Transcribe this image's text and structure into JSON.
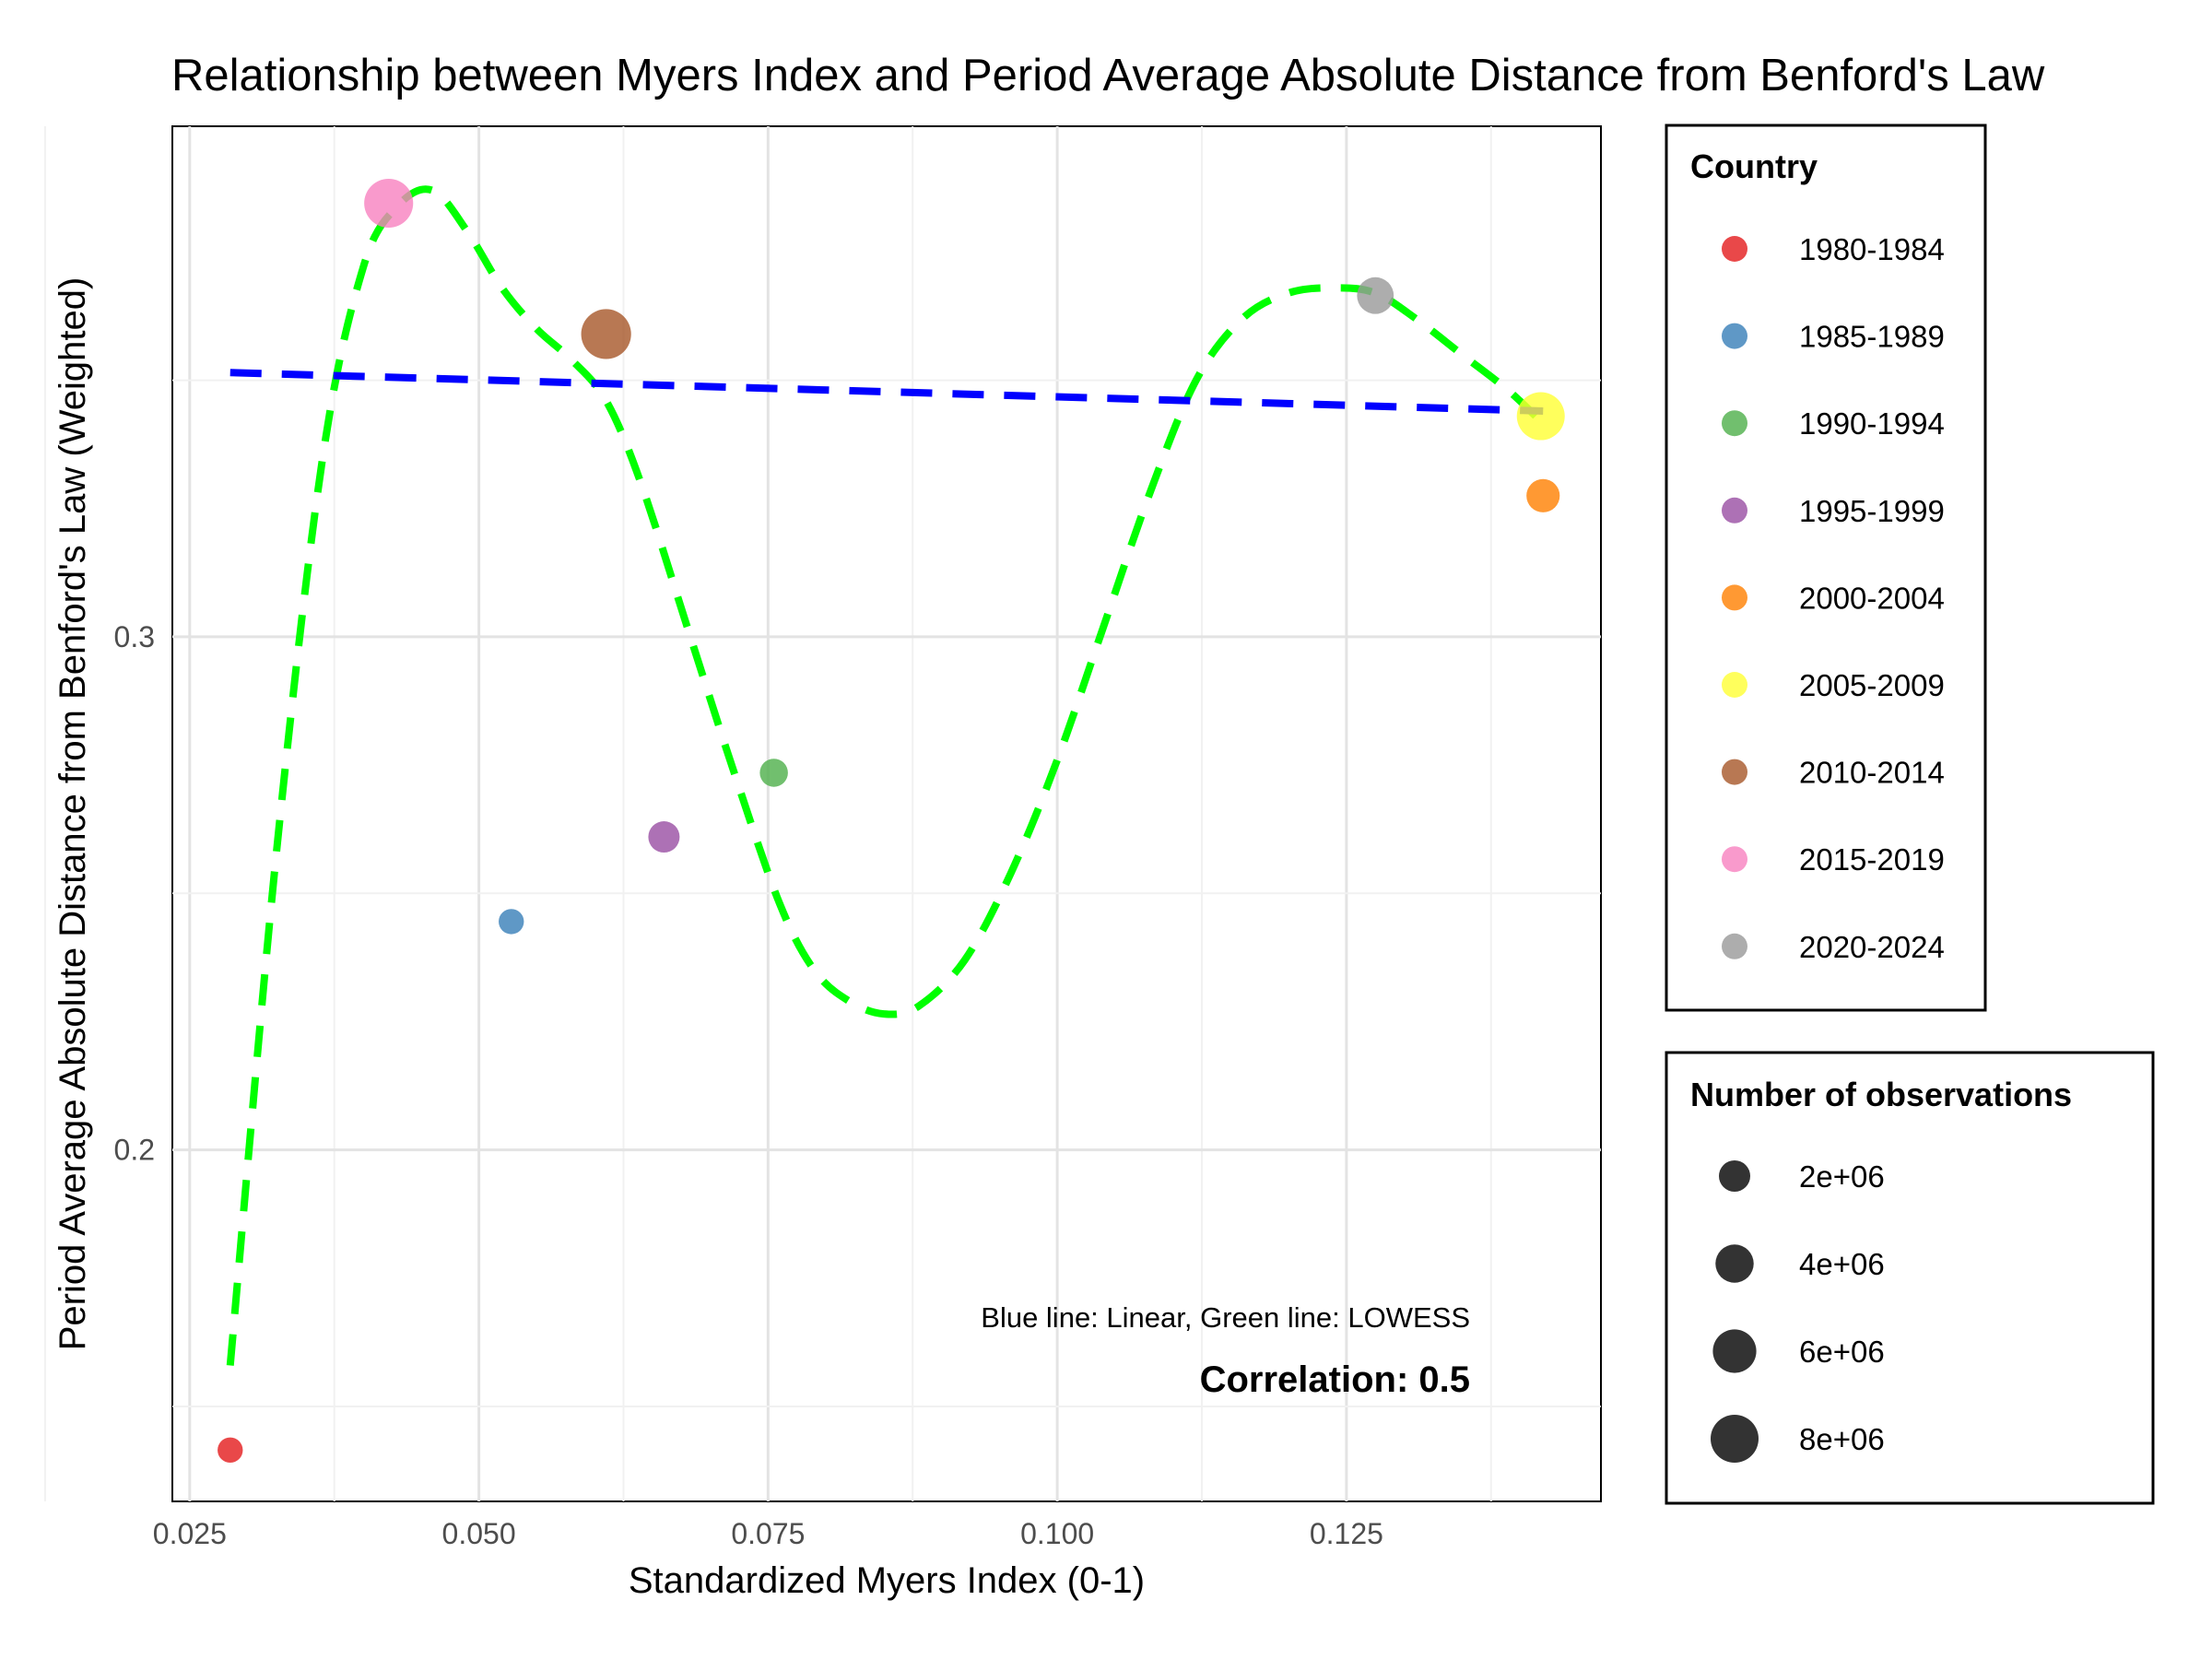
{
  "chart_data": {
    "type": "scatter",
    "title": "Relationship between Myers Index and Period Average Absolute Distance from Benford's Law",
    "xlabel": "Standardized Myers Index (0-1)",
    "ylabel": "Period Average Absolute Distance from Benford's Law (Weighted)",
    "xlim": [
      0.0235,
      0.147
    ],
    "ylim": [
      0.1315,
      0.3995
    ],
    "x_ticks": [
      "0.025",
      "0.050",
      "0.075",
      "0.100",
      "0.125"
    ],
    "x_tick_values": [
      0.025,
      0.05,
      0.075,
      0.1,
      0.125
    ],
    "y_ticks": [
      "0.2",
      "0.3"
    ],
    "y_tick_values": [
      0.2,
      0.3
    ],
    "grid": true,
    "legend_position": "right",
    "color_legend_title": "Country",
    "size_legend_title": "Number of observations",
    "points": [
      {
        "label": "1980-1984",
        "x": 0.0285,
        "y": 0.1415,
        "n": 800000,
        "color": "#e41a1c"
      },
      {
        "label": "1985-1989",
        "x": 0.0528,
        "y": 0.2445,
        "n": 800000,
        "color": "#377eb8"
      },
      {
        "label": "1990-1994",
        "x": 0.0755,
        "y": 0.2735,
        "n": 1300000,
        "color": "#4daf4a"
      },
      {
        "label": "1995-1999",
        "x": 0.066,
        "y": 0.261,
        "n": 2000000,
        "color": "#984ea3"
      },
      {
        "label": "2000-2004",
        "x": 0.142,
        "y": 0.3275,
        "n": 2500000,
        "color": "#ff7f00"
      },
      {
        "label": "2005-2009",
        "x": 0.1418,
        "y": 0.343,
        "n": 8000000,
        "color": "#ffff33"
      },
      {
        "label": "2010-2014",
        "x": 0.061,
        "y": 0.359,
        "n": 9000000,
        "color": "#a65628"
      },
      {
        "label": "2015-2019",
        "x": 0.0422,
        "y": 0.3845,
        "n": 8500000,
        "color": "#f781bf"
      },
      {
        "label": "2020-2024",
        "x": 0.1275,
        "y": 0.3665,
        "n": 3500000,
        "color": "#999999"
      }
    ],
    "linear_fit": {
      "x": [
        0.0285,
        0.142
      ],
      "y": [
        0.3515,
        0.344
      ],
      "color": "#0000ff"
    },
    "lowess_fit": {
      "color": "#00ff00",
      "x": [
        0.0285,
        0.0325,
        0.0365,
        0.04,
        0.043,
        0.046,
        0.049,
        0.052,
        0.055,
        0.058,
        0.061,
        0.064,
        0.068,
        0.072,
        0.076,
        0.079,
        0.082,
        0.085,
        0.088,
        0.092,
        0.096,
        0.1,
        0.104,
        0.108,
        0.112,
        0.116,
        0.12,
        0.124,
        0.1275,
        0.131,
        0.135,
        0.139,
        0.1418
      ],
      "y": [
        0.158,
        0.258,
        0.335,
        0.372,
        0.384,
        0.387,
        0.379,
        0.368,
        0.36,
        0.354,
        0.346,
        0.33,
        0.302,
        0.274,
        0.248,
        0.235,
        0.229,
        0.2265,
        0.228,
        0.237,
        0.254,
        0.276,
        0.302,
        0.328,
        0.35,
        0.362,
        0.367,
        0.368,
        0.367,
        0.362,
        0.355,
        0.348,
        0.342
      ]
    },
    "size_legend": [
      {
        "label": "2e+06",
        "n": 2000000
      },
      {
        "label": "4e+06",
        "n": 4000000
      },
      {
        "label": "6e+06",
        "n": 6000000
      },
      {
        "label": "8e+06",
        "n": 8000000
      }
    ],
    "annotations": {
      "fit_note": "Blue line: Linear, Green line: LOWESS",
      "correlation": "Correlation: 0.5"
    }
  }
}
